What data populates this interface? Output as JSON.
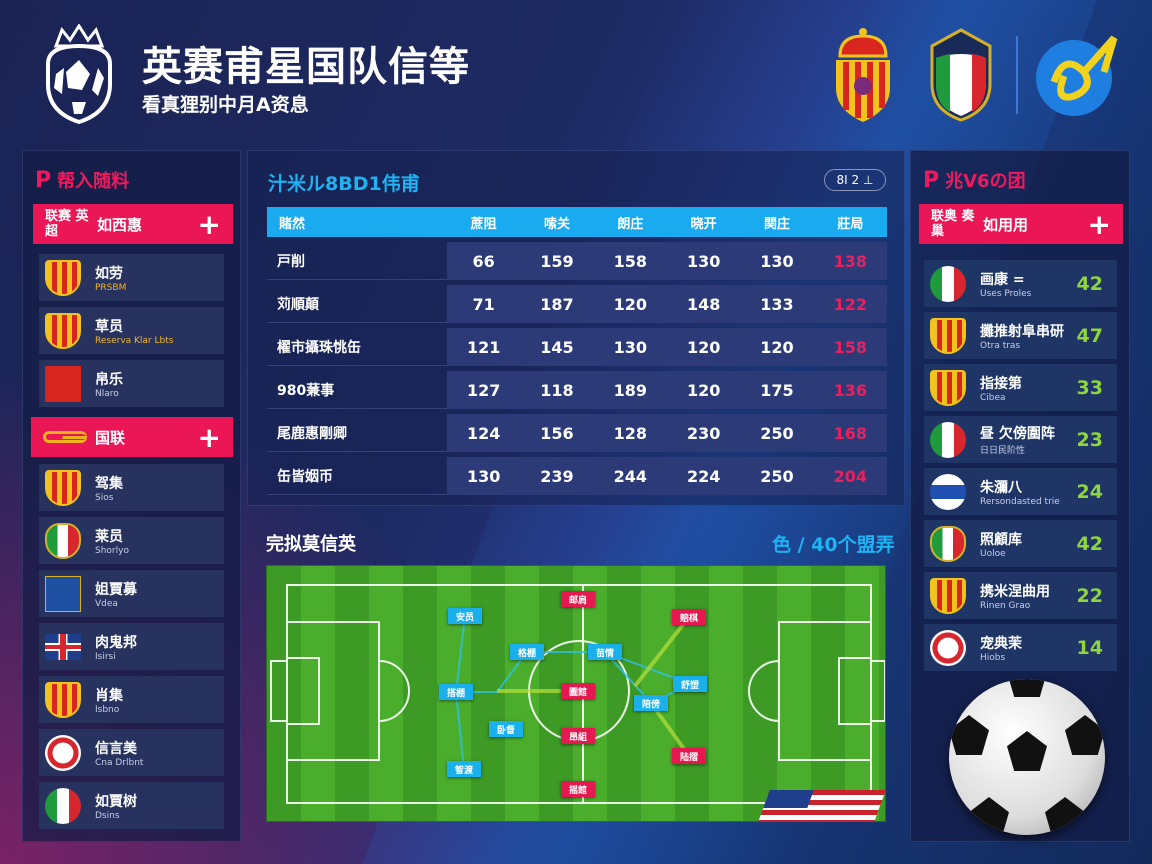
{
  "header": {
    "title": "英赛甫星国队信等",
    "subtitle": "看真狸别中月A资息"
  },
  "header_icons": [
    "shield-crest-icon",
    "italy-crest-icon",
    "blue-club-badge-icon"
  ],
  "left_panel": {
    "title": "帮入随料",
    "group1": {
      "tag": "联赛 英超",
      "label": "如西惠",
      "items": [
        {
          "name": "如劳",
          "sub": "PRSBM",
          "icon": "shield-crest-icon",
          "sub_color": "#f0b52a"
        },
        {
          "name": "草员",
          "sub": "Reserva Klar Lbts",
          "icon": "shield-crest-icon",
          "sub_color": "#f0b52a"
        },
        {
          "name": "帛乐",
          "sub": "Nlaro",
          "icon": "red-badge-icon"
        }
      ]
    },
    "group2": {
      "label": "国联",
      "items": [
        {
          "name": "驾集",
          "sub": "Sios",
          "icon": "shield-crest-icon"
        },
        {
          "name": "莱员",
          "sub": "Shorlyo",
          "icon": "italy-crest-icon"
        },
        {
          "name": "姐賈募",
          "sub": "Vdea",
          "icon": "blue-flag-icon"
        },
        {
          "name": "肉鬼邦",
          "sub": "Isirsi",
          "icon": "uk-flag-icon"
        },
        {
          "name": "肖集",
          "sub": "Isbno",
          "icon": "shield-crest-icon"
        },
        {
          "name": "信言美",
          "sub": "Cna Drlbnt",
          "icon": "ball-badge-icon"
        },
        {
          "name": "如賈树",
          "sub": "Dsins",
          "icon": "italy-flag-icon"
        }
      ]
    }
  },
  "stats": {
    "title": "汁米ル8BD1伟甫",
    "badge": "8I 2 ⊥",
    "columns": [
      "賭然",
      "蔗阻",
      "嗦关",
      "朗庄",
      "晓开",
      "関庄",
      "莊局"
    ],
    "rows": [
      [
        "戸削",
        "66",
        "159",
        "158",
        "130",
        "130",
        "138"
      ],
      [
        "苅順顛",
        "71",
        "187",
        "120",
        "148",
        "133",
        "122"
      ],
      [
        "櫂市攝珠恌缶",
        "121",
        "145",
        "130",
        "120",
        "120",
        "158"
      ],
      [
        "980蒹事",
        "127",
        "118",
        "189",
        "120",
        "175",
        "136"
      ],
      [
        "尾鹿惠剛卿",
        "124",
        "156",
        "128",
        "230",
        "250",
        "168"
      ],
      [
        "缶皆姻币",
        "130",
        "239",
        "244",
        "224",
        "250",
        "204"
      ]
    ],
    "highlight_color": "#e8205e"
  },
  "formation": {
    "title": "完拟莫信英",
    "right_label": "色 / 40个盟弄",
    "blue_players": [
      "安员",
      "格棚",
      "苗情",
      "搭棚",
      "舒塑",
      "陪傍",
      "卧督",
      "智渡"
    ],
    "red_players": [
      "邮肩",
      "赔棋",
      "圖館",
      "昂組",
      "陆摺",
      "摇館"
    ]
  },
  "right_panel": {
    "title": "兆V6の团",
    "bar": {
      "tag": "联奥 奏巢",
      "label": "如用用"
    },
    "items": [
      {
        "name": "画康 =",
        "sub": "Uses Proles",
        "value": "42",
        "icon": "italy-flag-icon"
      },
      {
        "name": "攤推射阜串研",
        "sub": "Otra tras",
        "value": "47",
        "icon": "shield-crest-icon"
      },
      {
        "name": "指接第",
        "sub": "Cibea",
        "value": "33",
        "icon": "shield-crest-icon"
      },
      {
        "name": "昼 欠傍圍阵",
        "sub": "日日民阶性",
        "value": "23",
        "icon": "italy-flag-icon"
      },
      {
        "name": "朱瀰八",
        "sub": "Rersondasted trie",
        "value": "24",
        "icon": "blue-white-flag-icon"
      },
      {
        "name": "照顧库",
        "sub": "Uoloe",
        "value": "42",
        "icon": "italy-crest-icon"
      },
      {
        "name": "携米涅曲用",
        "sub": "Rinen Grao",
        "value": "22",
        "icon": "shield-crest-icon"
      },
      {
        "name": "宠典茉",
        "sub": "Hiobs",
        "value": "14",
        "icon": "red-cross-badge-icon"
      }
    ]
  },
  "colors": {
    "accent_red": "#ea1656",
    "accent_blue": "#1aaaf0",
    "value_green": "#8fd63e"
  }
}
